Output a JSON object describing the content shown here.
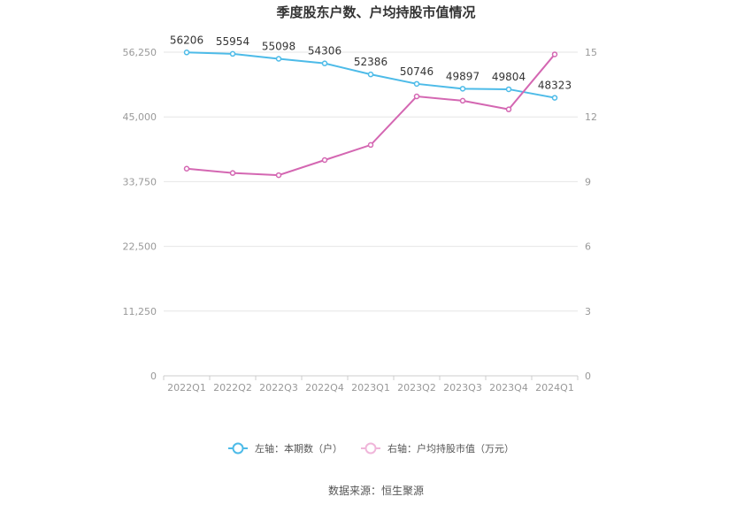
{
  "chart_data": {
    "type": "line",
    "title": "季度股东户数、户均持股市值情况",
    "categories": [
      "2022Q1",
      "2022Q2",
      "2022Q3",
      "2022Q4",
      "2023Q1",
      "2023Q2",
      "2023Q3",
      "2023Q4",
      "2024Q1"
    ],
    "left_axis": {
      "ylim": [
        0,
        56250
      ],
      "ticks": [
        0,
        11250,
        22500,
        33750,
        45000,
        56250
      ],
      "tick_labels": [
        "0",
        "11,250",
        "22,500",
        "33,750",
        "45,000",
        "56,250"
      ]
    },
    "right_axis": {
      "ylim": [
        0,
        15
      ],
      "ticks": [
        0,
        3,
        6,
        9,
        12,
        15
      ],
      "tick_labels": [
        "0",
        "3",
        "6",
        "9",
        "12",
        "15"
      ]
    },
    "series": [
      {
        "name": "左轴：本期数（户）",
        "axis": "left",
        "color": "#4dbbe8",
        "values": [
          56206,
          55954,
          55098,
          54306,
          52386,
          50746,
          49897,
          49804,
          48323
        ],
        "data_labels": [
          "56206",
          "55954",
          "55098",
          "54306",
          "52386",
          "50746",
          "49897",
          "49804",
          "48323"
        ]
      },
      {
        "name": "右轴：户均持股市值（万元）",
        "axis": "right",
        "color": "#d467b2",
        "values": [
          9.6,
          9.4,
          9.3,
          10.0,
          10.7,
          12.95,
          12.75,
          12.35,
          14.9
        ]
      }
    ],
    "grid": true,
    "legend_position": "bottom"
  },
  "source_text": "数据来源：恒生聚源"
}
